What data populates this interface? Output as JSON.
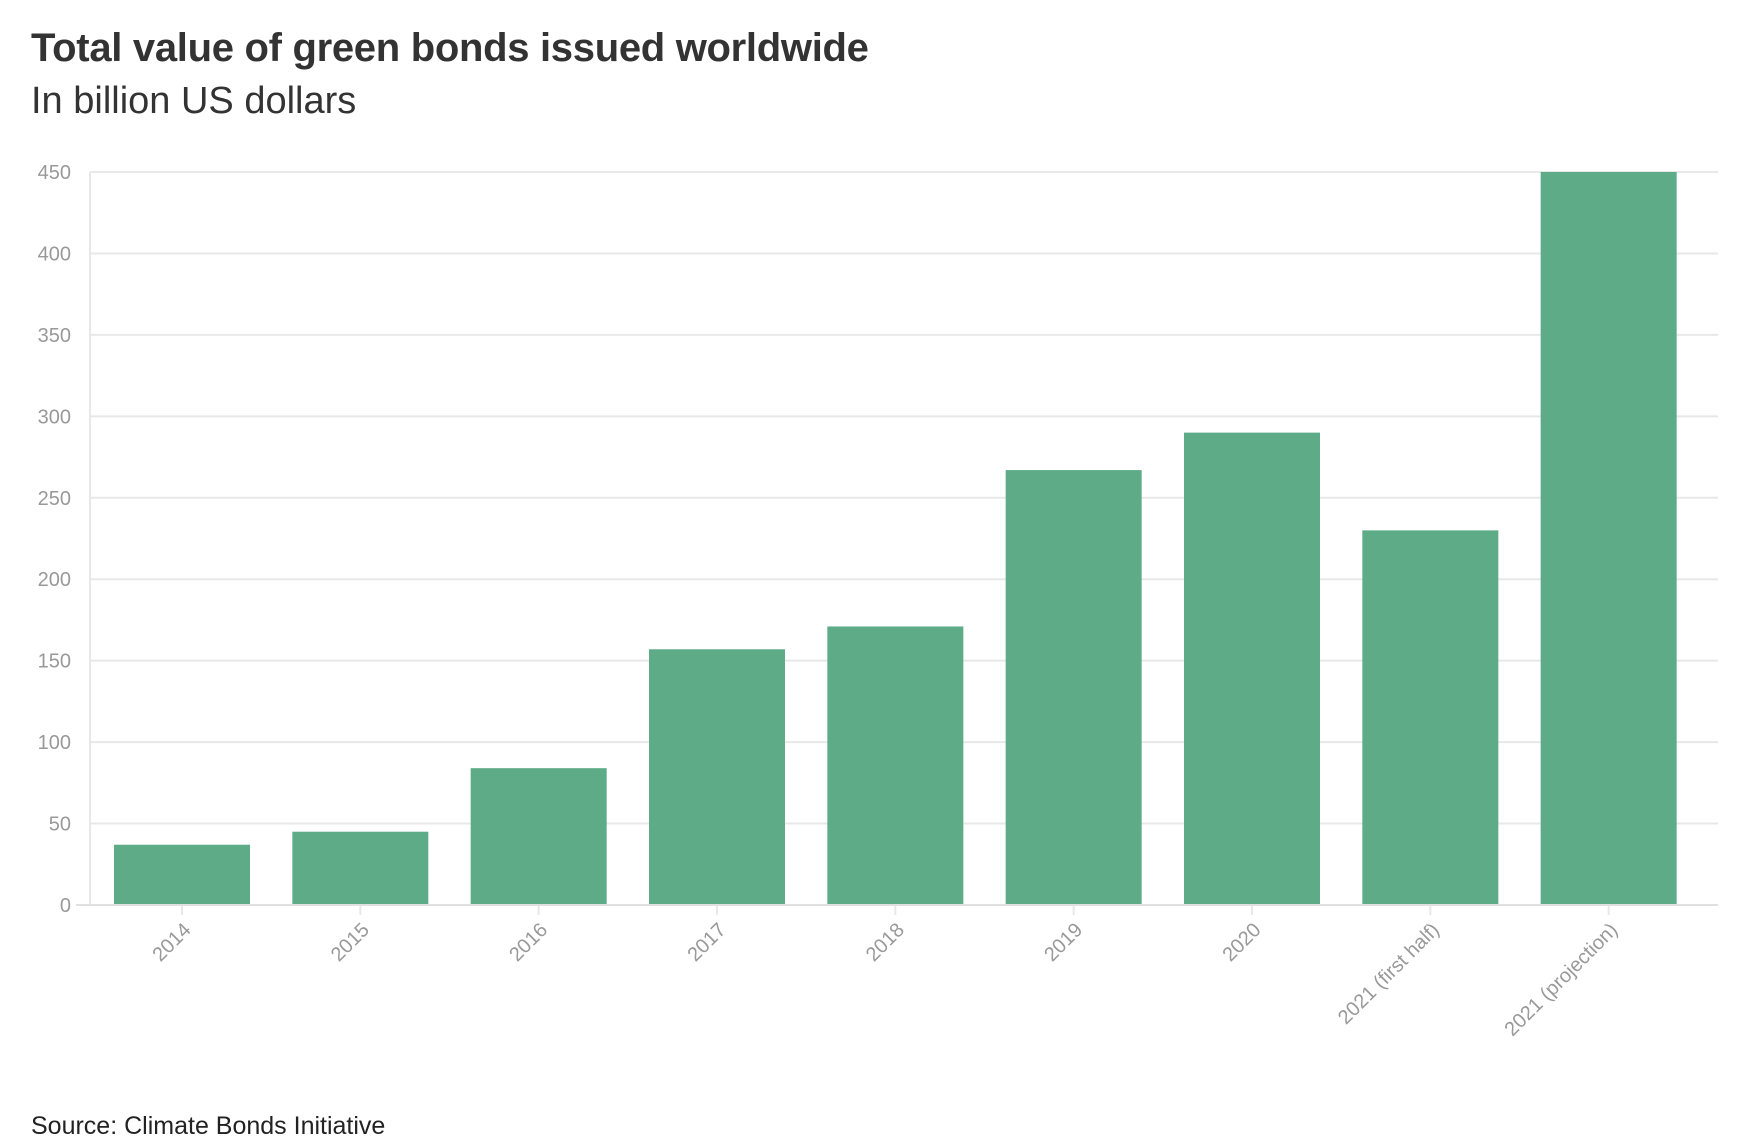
{
  "chart_data": {
    "type": "bar",
    "title": "Total value of green bonds issued worldwide",
    "subtitle": "In billion US dollars",
    "source": "Source: Climate Bonds Initiative",
    "categories": [
      "2014",
      "2015",
      "2016",
      "2017",
      "2018",
      "2019",
      "2020",
      "2021 (first half)",
      "2021 (projection)"
    ],
    "values": [
      37,
      45,
      84,
      157,
      171,
      267,
      290,
      230,
      450
    ],
    "ylim": [
      0,
      450
    ],
    "yticks": [
      0,
      50,
      100,
      150,
      200,
      250,
      300,
      350,
      400,
      450
    ],
    "grid": true,
    "bar_color": "#5eab88",
    "grid_color": "#e8e8e8",
    "tick_color": "#999999"
  }
}
